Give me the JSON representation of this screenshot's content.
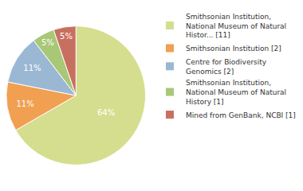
{
  "chart_data": {
    "type": "pie",
    "categories": [
      "Smithsonian Institution,\nNational Museum of Natural\nHistor... [11]",
      "Smithsonian Institution [2]",
      "Centre for Biodiversity\nGenomics [2]",
      "Smithsonian Institution,\nNational Museum of Natural\nHistory [1]",
      "Mined from GenBank, NCBI [1]"
    ],
    "values": [
      64,
      11,
      11,
      5,
      5
    ],
    "value_labels": [
      "64%",
      "11%",
      "11%",
      "5%",
      "5%"
    ],
    "colors": [
      "#d4de8e",
      "#f0a050",
      "#9ab8d4",
      "#a8c878",
      "#c87060"
    ],
    "data_labels": true,
    "legend": "right"
  }
}
